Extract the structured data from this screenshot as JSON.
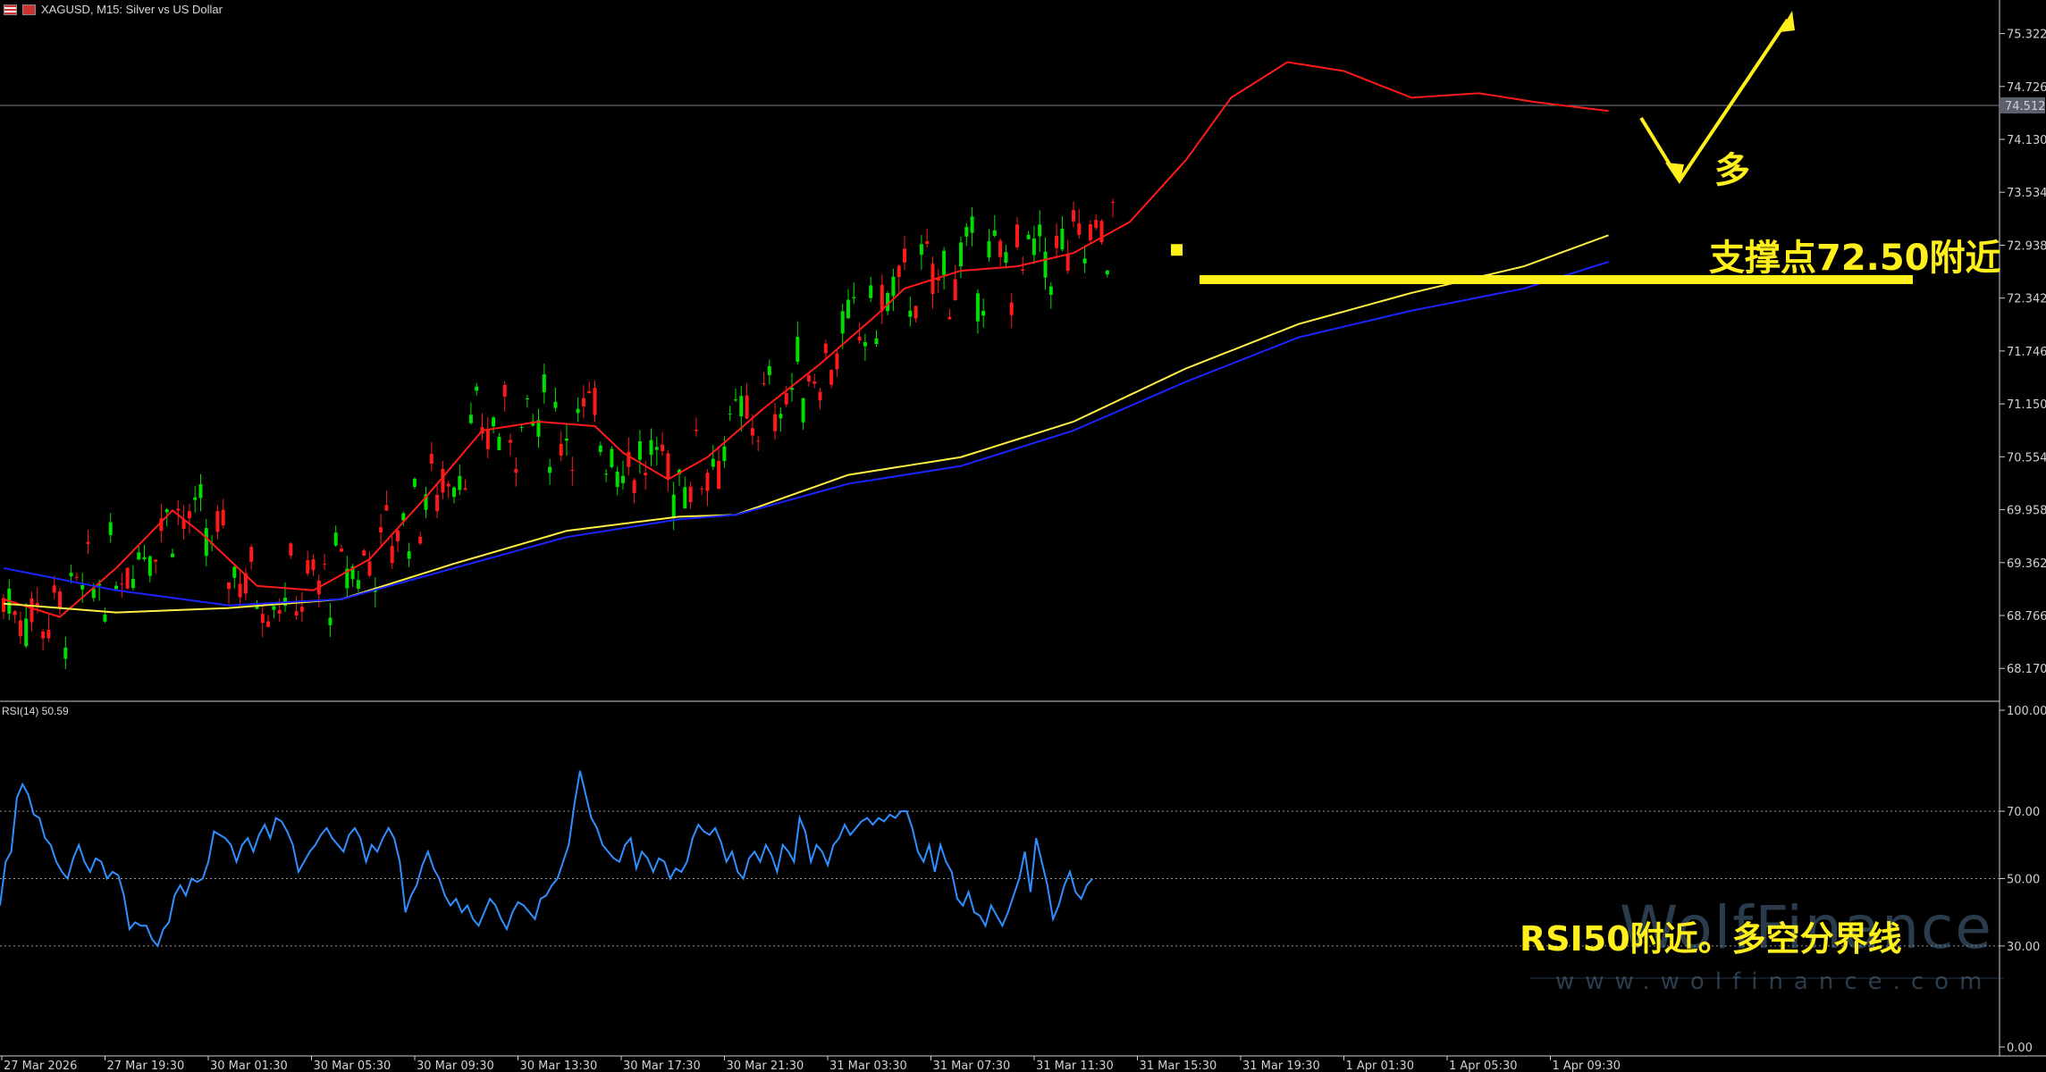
{
  "header": {
    "symbol_line": "XAGUSD, M15:  Silver vs US Dollar"
  },
  "rsi_header": "RSI(14) 50.59",
  "current_price": "74.512",
  "price_axis_ticks": [
    "75.322",
    "74.726",
    "74.130",
    "73.534",
    "72.938",
    "72.342",
    "71.746",
    "71.150",
    "70.554",
    "69.958",
    "69.362",
    "68.766",
    "68.170"
  ],
  "rsi_axis_ticks": [
    "100.00",
    "70.00",
    "50.00",
    "30.00",
    "0.00"
  ],
  "time_axis_ticks": [
    "27 Mar 2026",
    "27 Mar 19:30",
    "30 Mar 01:30",
    "30 Mar 05:30",
    "30 Mar 09:30",
    "30 Mar 13:30",
    "30 Mar 17:30",
    "30 Mar 21:30",
    "31 Mar 03:30",
    "31 Mar 07:30",
    "31 Mar 11:30",
    "31 Mar 15:30",
    "31 Mar 19:30",
    "1 Apr 01:30",
    "1 Apr 05:30",
    "1 Apr 09:30"
  ],
  "annotations": {
    "direction": "多",
    "support": "支撑点72.50附近",
    "rsi_note": "RSI50附近。多空分界线"
  },
  "watermark": {
    "brand": "WolfFinance",
    "url": "www.wolfinance.com"
  },
  "colors": {
    "bull": "#00e000",
    "bear": "#ff1a1a",
    "ma_fast": "#ff1a1a",
    "ma_mid": "#ffee44",
    "ma_slow": "#1a24ff",
    "rsi": "#2f8fff",
    "annotation": "#ffef1a"
  },
  "chart_data": [
    {
      "type": "candlestick",
      "title": "XAGUSD, M15: Silver vs US Dollar",
      "ylim": [
        67.8,
        75.7
      ],
      "x_range": [
        "27 Mar 2026",
        "1 Apr 11:30"
      ],
      "support_level": 72.55,
      "series": [
        {
          "name": "MA fast",
          "points": [
            [
              0,
              68.95
            ],
            [
              10,
              68.75
            ],
            [
              20,
              69.3
            ],
            [
              30,
              69.95
            ],
            [
              35,
              69.7
            ],
            [
              45,
              69.1
            ],
            [
              55,
              69.05
            ],
            [
              65,
              69.4
            ],
            [
              75,
              70.1
            ],
            [
              85,
              70.85
            ],
            [
              95,
              70.95
            ],
            [
              105,
              70.9
            ],
            [
              110,
              70.6
            ],
            [
              118,
              70.3
            ],
            [
              125,
              70.55
            ],
            [
              135,
              71.1
            ],
            [
              145,
              71.6
            ],
            [
              155,
              72.15
            ],
            [
              160,
              72.45
            ],
            [
              170,
              72.65
            ],
            [
              180,
              72.7
            ],
            [
              190,
              72.85
            ],
            [
              200,
              73.2
            ],
            [
              210,
              73.9
            ],
            [
              218,
              74.6
            ],
            [
              228,
              75.0
            ],
            [
              238,
              74.9
            ],
            [
              250,
              74.6
            ],
            [
              262,
              74.65
            ],
            [
              272,
              74.55
            ],
            [
              285,
              74.45
            ]
          ]
        },
        {
          "name": "MA mid",
          "points": [
            [
              0,
              68.9
            ],
            [
              20,
              68.8
            ],
            [
              40,
              68.85
            ],
            [
              60,
              68.95
            ],
            [
              80,
              69.35
            ],
            [
              100,
              69.72
            ],
            [
              120,
              69.88
            ],
            [
              130,
              69.9
            ],
            [
              150,
              70.35
            ],
            [
              170,
              70.55
            ],
            [
              190,
              70.95
            ],
            [
              210,
              71.55
            ],
            [
              230,
              72.05
            ],
            [
              250,
              72.4
            ],
            [
              270,
              72.7
            ],
            [
              285,
              73.05
            ]
          ]
        },
        {
          "name": "MA slow",
          "points": [
            [
              0,
              69.3
            ],
            [
              20,
              69.05
            ],
            [
              40,
              68.88
            ],
            [
              60,
              68.95
            ],
            [
              80,
              69.3
            ],
            [
              100,
              69.65
            ],
            [
              120,
              69.85
            ],
            [
              130,
              69.9
            ],
            [
              150,
              70.25
            ],
            [
              170,
              70.45
            ],
            [
              190,
              70.85
            ],
            [
              210,
              71.4
            ],
            [
              230,
              71.9
            ],
            [
              250,
              72.2
            ],
            [
              270,
              72.45
            ],
            [
              285,
              72.75
            ]
          ]
        }
      ]
    },
    {
      "type": "line",
      "title": "RSI(14)",
      "ylim": [
        0,
        100
      ],
      "levels": [
        70,
        50,
        30
      ],
      "series": [
        {
          "name": "RSI(14)",
          "values": [
            42,
            55,
            58,
            74,
            78,
            75,
            69,
            68,
            62,
            60,
            55,
            52,
            50,
            56,
            60,
            55,
            52,
            56,
            55,
            50,
            52,
            51,
            45,
            35,
            37,
            36,
            36,
            32,
            30,
            35,
            37,
            45,
            48,
            45,
            50,
            49,
            50,
            55,
            64,
            63,
            62,
            60,
            55,
            60,
            62,
            58,
            63,
            66,
            62,
            68,
            67,
            64,
            60,
            52,
            55,
            58,
            60,
            63,
            65,
            62,
            60,
            58,
            63,
            65,
            62,
            55,
            60,
            58,
            62,
            65,
            62,
            55,
            40,
            45,
            48,
            54,
            58,
            53,
            50,
            45,
            42,
            44,
            40,
            42,
            38,
            36,
            40,
            44,
            42,
            38,
            35,
            40,
            43,
            42,
            40,
            38,
            44,
            45,
            48,
            50,
            55,
            60,
            72,
            82,
            75,
            68,
            65,
            60,
            58,
            56,
            55,
            60,
            62,
            53,
            58,
            56,
            52,
            56,
            55,
            50,
            53,
            52,
            55,
            62,
            66,
            64,
            63,
            65,
            61,
            55,
            58,
            52,
            50,
            56,
            58,
            55,
            60,
            57,
            52,
            60,
            58,
            55,
            68,
            64,
            55,
            60,
            58,
            54,
            60,
            62,
            66,
            63,
            65,
            67,
            68,
            66,
            68,
            67,
            69,
            68,
            70,
            70,
            65,
            58,
            55,
            60,
            52,
            60,
            55,
            52,
            44,
            42,
            46,
            40,
            39,
            36,
            42,
            39,
            36,
            40,
            45,
            50,
            58,
            46,
            62,
            55,
            48,
            38,
            42,
            48,
            52,
            46,
            44,
            48,
            50
          ]
        }
      ]
    }
  ]
}
